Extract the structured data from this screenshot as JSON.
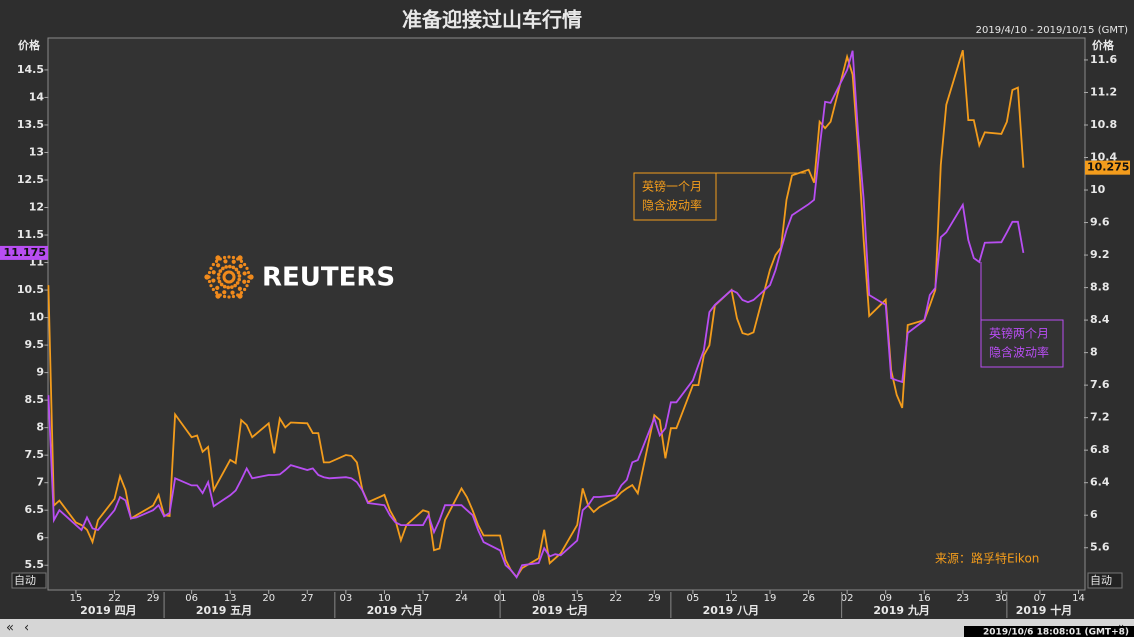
{
  "chart_data": {
    "type": "line",
    "title": "准备迎接过山车行情",
    "date_range": "2019/4/10 - 2019/10/15 (GMT)",
    "timestamp": "2019/10/6 18:08:01 (GMT+8)",
    "source": "来源：路孚特Eikon",
    "logo_text": "REUTERS",
    "y_label": "价格",
    "y2_label": "价格",
    "y_scale_mode": "自动",
    "y2_scale_mode": "自动",
    "x": [
      "2019-04-10",
      "2019-04-11",
      "2019-04-12",
      "2019-04-15",
      "2019-04-16",
      "2019-04-17",
      "2019-04-18",
      "2019-04-19",
      "2019-04-22",
      "2019-04-23",
      "2019-04-24",
      "2019-04-25",
      "2019-04-26",
      "2019-04-29",
      "2019-04-30",
      "2019-05-01",
      "2019-05-02",
      "2019-05-03",
      "2019-05-06",
      "2019-05-07",
      "2019-05-08",
      "2019-05-09",
      "2019-05-10",
      "2019-05-13",
      "2019-05-14",
      "2019-05-15",
      "2019-05-16",
      "2019-05-17",
      "2019-05-20",
      "2019-05-21",
      "2019-05-22",
      "2019-05-23",
      "2019-05-24",
      "2019-05-27",
      "2019-05-28",
      "2019-05-29",
      "2019-05-30",
      "2019-05-31",
      "2019-06-03",
      "2019-06-04",
      "2019-06-05",
      "2019-06-06",
      "2019-06-07",
      "2019-06-10",
      "2019-06-11",
      "2019-06-12",
      "2019-06-13",
      "2019-06-14",
      "2019-06-17",
      "2019-06-18",
      "2019-06-19",
      "2019-06-20",
      "2019-06-21",
      "2019-06-24",
      "2019-06-25",
      "2019-06-26",
      "2019-06-27",
      "2019-06-28",
      "2019-07-01",
      "2019-07-02",
      "2019-07-03",
      "2019-07-04",
      "2019-07-05",
      "2019-07-08",
      "2019-07-09",
      "2019-07-10",
      "2019-07-11",
      "2019-07-12",
      "2019-07-15",
      "2019-07-16",
      "2019-07-17",
      "2019-07-18",
      "2019-07-19",
      "2019-07-22",
      "2019-07-23",
      "2019-07-24",
      "2019-07-25",
      "2019-07-26",
      "2019-07-29",
      "2019-07-30",
      "2019-07-31",
      "2019-08-01",
      "2019-08-02",
      "2019-08-05",
      "2019-08-06",
      "2019-08-07",
      "2019-08-08",
      "2019-08-09",
      "2019-08-12",
      "2019-08-13",
      "2019-08-14",
      "2019-08-15",
      "2019-08-16",
      "2019-08-19",
      "2019-08-20",
      "2019-08-21",
      "2019-08-22",
      "2019-08-23",
      "2019-08-26",
      "2019-08-27",
      "2019-08-28",
      "2019-08-29",
      "2019-08-30",
      "2019-09-02",
      "2019-09-03",
      "2019-09-04",
      "2019-09-05",
      "2019-09-06",
      "2019-09-09",
      "2019-09-10",
      "2019-09-11",
      "2019-09-12",
      "2019-09-13",
      "2019-09-16",
      "2019-09-17",
      "2019-09-18",
      "2019-09-19",
      "2019-09-20",
      "2019-09-23",
      "2019-09-24",
      "2019-09-25",
      "2019-09-26",
      "2019-09-27",
      "2019-09-30",
      "2019-10-01",
      "2019-10-02",
      "2019-10-03",
      "2019-10-04"
    ],
    "series": [
      {
        "color": "#f39c1c",
        "axis": "y2",
        "values": [
          8.83,
          6.12,
          6.18,
          5.91,
          5.88,
          5.82,
          5.67,
          5.94,
          6.2,
          6.48,
          6.31,
          5.96,
          6.0,
          6.12,
          6.25,
          6.0,
          5.99,
          7.24,
          6.96,
          6.98,
          6.78,
          6.84,
          6.31,
          6.68,
          6.64,
          7.17,
          7.11,
          6.96,
          7.13,
          6.76,
          7.19,
          7.08,
          7.14,
          7.13,
          7.01,
          7.01,
          6.65,
          6.65,
          6.74,
          6.73,
          6.65,
          6.31,
          6.16,
          6.25,
          6.06,
          5.94,
          5.69,
          5.88,
          6.06,
          6.04,
          5.57,
          5.59,
          5.94,
          6.33,
          6.22,
          6.06,
          5.88,
          5.75,
          5.75,
          5.45,
          5.32,
          5.24,
          5.35,
          5.47,
          5.82,
          5.41,
          5.47,
          5.53,
          5.88,
          6.33,
          6.12,
          6.04,
          6.1,
          6.21,
          6.28,
          6.33,
          6.37,
          6.27,
          7.23,
          7.17,
          6.7,
          7.07,
          7.07,
          7.6,
          7.6,
          7.97,
          8.09,
          8.58,
          8.77,
          8.42,
          8.24,
          8.22,
          8.25,
          9.02,
          9.2,
          9.29,
          9.88,
          10.18,
          10.25,
          10.09,
          10.84,
          10.76,
          10.84,
          11.64,
          11.42,
          10.49,
          9.38,
          8.45,
          8.65,
          7.78,
          7.48,
          7.32,
          8.34,
          8.4,
          8.58,
          8.77,
          10.31,
          11.05,
          11.72,
          10.86,
          10.86,
          10.55,
          10.71,
          10.69,
          10.84,
          11.23,
          11.26,
          10.275
        ]
      },
      {
        "color": "#b84ef2",
        "axis": "y",
        "values": [
          8.59,
          6.32,
          6.5,
          6.23,
          6.14,
          6.37,
          6.17,
          6.14,
          6.5,
          6.74,
          6.68,
          6.35,
          6.37,
          6.5,
          6.59,
          6.39,
          6.45,
          7.08,
          6.95,
          6.95,
          6.81,
          7.01,
          6.57,
          6.77,
          6.86,
          7.05,
          7.26,
          7.08,
          7.14,
          7.14,
          7.15,
          7.23,
          7.32,
          7.23,
          7.26,
          7.14,
          7.1,
          7.08,
          7.1,
          7.08,
          7.01,
          6.86,
          6.63,
          6.59,
          6.41,
          6.28,
          6.23,
          6.23,
          6.23,
          6.41,
          6.1,
          6.32,
          6.59,
          6.59,
          6.5,
          6.41,
          6.14,
          5.92,
          5.77,
          5.5,
          5.41,
          5.28,
          5.5,
          5.54,
          5.81,
          5.66,
          5.7,
          5.68,
          5.95,
          6.5,
          6.59,
          6.74,
          6.74,
          6.77,
          6.95,
          7.05,
          7.37,
          7.41,
          8.17,
          7.86,
          7.99,
          8.46,
          8.46,
          8.86,
          9.14,
          9.41,
          10.1,
          10.23,
          10.5,
          10.45,
          10.32,
          10.28,
          10.32,
          10.59,
          10.86,
          11.23,
          11.59,
          11.86,
          12.06,
          12.14,
          13.08,
          13.92,
          13.9,
          14.5,
          14.85,
          13.32,
          12.14,
          10.41,
          10.23,
          8.9,
          8.86,
          8.83,
          9.72,
          9.95,
          10.41,
          10.54,
          11.46,
          11.55,
          12.05,
          11.41,
          11.08,
          11.01,
          11.36,
          11.37,
          11.55,
          11.74,
          11.74,
          11.175
        ]
      }
    ],
    "annotations": [
      {
        "lines": [
          "英镑一个月",
          "隐含波动率"
        ],
        "color": "#f39c1c"
      },
      {
        "lines": [
          "英镑两个月",
          "隐含波动率"
        ],
        "color": "#b84ef2"
      }
    ],
    "xlim": [
      "2019-04-10",
      "2019-10-15"
    ],
    "xticks": [
      {
        "value": "2019-04-15",
        "label": "15"
      },
      {
        "value": "2019-04-22",
        "label": "22"
      },
      {
        "value": "2019-04-29",
        "label": "29"
      },
      {
        "value": "2019-05-06",
        "label": "06"
      },
      {
        "value": "2019-05-13",
        "label": "13"
      },
      {
        "value": "2019-05-20",
        "label": "20"
      },
      {
        "value": "2019-05-27",
        "label": "27"
      },
      {
        "value": "2019-06-03",
        "label": "03"
      },
      {
        "value": "2019-06-10",
        "label": "10"
      },
      {
        "value": "2019-06-17",
        "label": "17"
      },
      {
        "value": "2019-06-24",
        "label": "24"
      },
      {
        "value": "2019-07-01",
        "label": "01"
      },
      {
        "value": "2019-07-08",
        "label": "08"
      },
      {
        "value": "2019-07-15",
        "label": "15"
      },
      {
        "value": "2019-07-22",
        "label": "22"
      },
      {
        "value": "2019-07-29",
        "label": "29"
      },
      {
        "value": "2019-08-05",
        "label": "05"
      },
      {
        "value": "2019-08-12",
        "label": "12"
      },
      {
        "value": "2019-08-19",
        "label": "19"
      },
      {
        "value": "2019-08-26",
        "label": "26"
      },
      {
        "value": "2019-09-02",
        "label": "02"
      },
      {
        "value": "2019-09-09",
        "label": "09"
      },
      {
        "value": "2019-09-16",
        "label": "16"
      },
      {
        "value": "2019-09-23",
        "label": "23"
      },
      {
        "value": "2019-09-30",
        "label": "30"
      },
      {
        "value": "2019-10-07",
        "label": "07"
      },
      {
        "value": "2019-10-14",
        "label": "14"
      }
    ],
    "xticks_major": [
      {
        "value": "2019-04",
        "label": "2019 四月"
      },
      {
        "value": "2019-05",
        "label": "2019 五月"
      },
      {
        "value": "2019-06",
        "label": "2019 六月"
      },
      {
        "value": "2019-07",
        "label": "2019 七月"
      },
      {
        "value": "2019-08",
        "label": "2019 八月"
      },
      {
        "value": "2019-09",
        "label": "2019 九月"
      },
      {
        "value": "2019-10",
        "label": "2019 十月"
      }
    ],
    "ylim": [
      5.05,
      15.08
    ],
    "yticks": [
      5.5,
      6,
      6.5,
      7,
      7.5,
      8,
      8.5,
      9,
      9.5,
      10,
      10.5,
      11,
      11.5,
      12,
      12.5,
      13,
      13.5,
      14,
      14.5
    ],
    "y2lim": [
      5.08,
      11.87
    ],
    "y2ticks": [
      5.6,
      6,
      6.4,
      6.8,
      7.2,
      7.6,
      8,
      8.4,
      8.8,
      9.2,
      9.6,
      10,
      10.4,
      10.8,
      11.2,
      11.6
    ],
    "grid": false
  }
}
